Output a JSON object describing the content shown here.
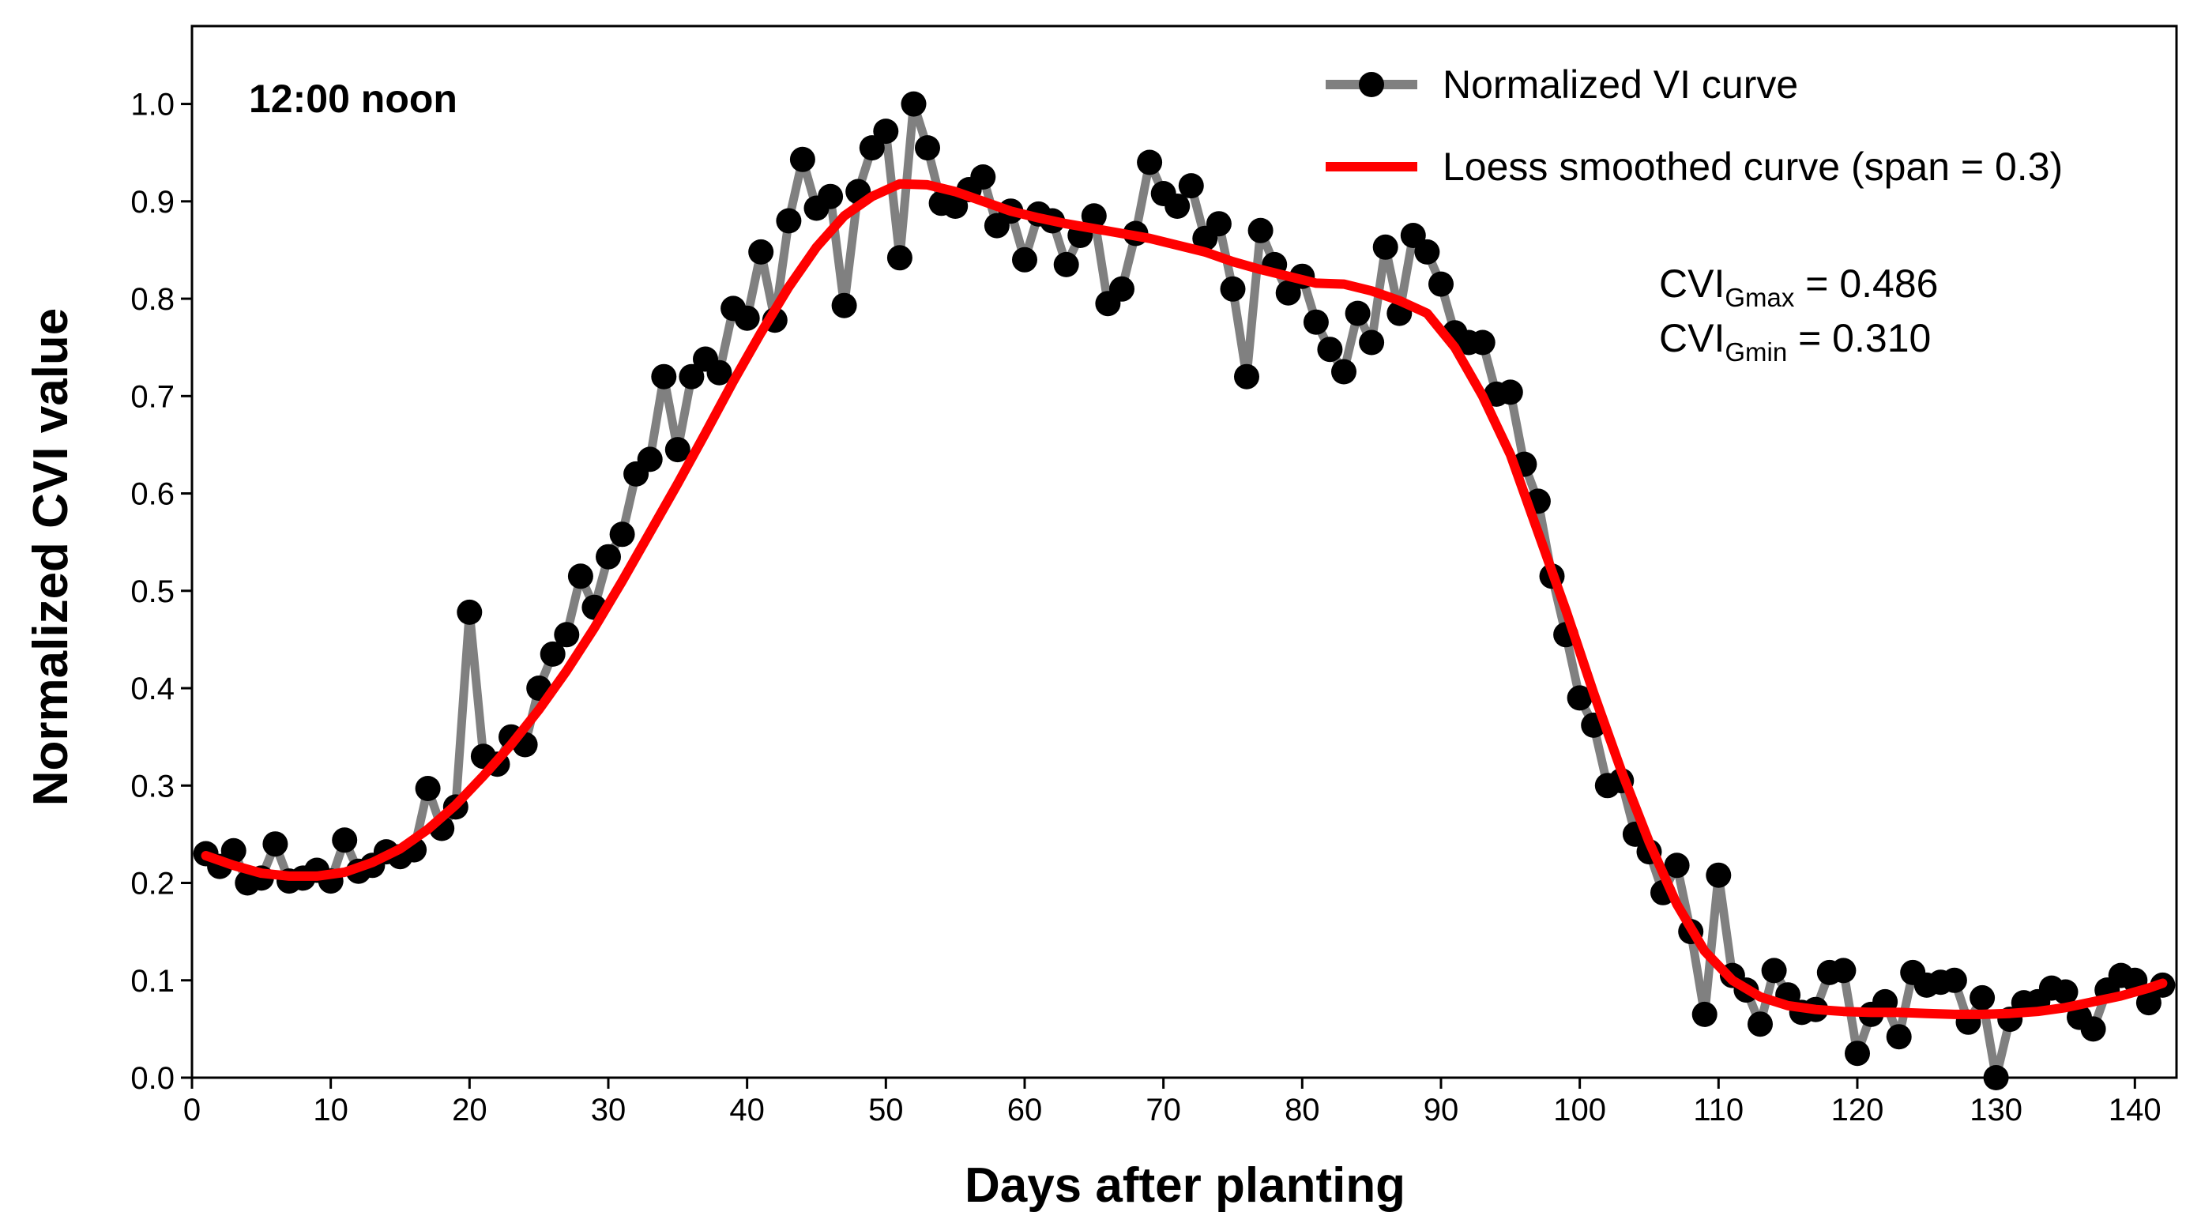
{
  "chart_data": {
    "type": "line",
    "title": "12:00 noon",
    "xlabel": "Days after planting",
    "ylabel": "Normalized CVI value",
    "xlim": [
      0,
      143
    ],
    "ylim": [
      0.0,
      1.08
    ],
    "xticks": [
      0,
      10,
      20,
      30,
      40,
      50,
      60,
      70,
      80,
      90,
      100,
      110,
      120,
      130,
      140
    ],
    "xtick_labels": [
      "0",
      "10",
      "20",
      "30",
      "40",
      "50",
      "60",
      "70",
      "80",
      "90",
      "100",
      "110",
      "120",
      "130",
      "140"
    ],
    "yticks": [
      0.0,
      0.1,
      0.2,
      0.3,
      0.4,
      0.5,
      0.6,
      0.7,
      0.8,
      0.9,
      1.0
    ],
    "ytick_labels": [
      "0.0",
      "0.1",
      "0.2",
      "0.3",
      "0.4",
      "0.5",
      "0.6",
      "0.7",
      "0.8",
      "0.9",
      "1.0"
    ],
    "grid": false,
    "legend_position": "top-right",
    "colors": {
      "vi_line": "#808080",
      "vi_marker": "#000000",
      "loess": "#ff0000"
    },
    "series": [
      {
        "name": "Normalized VI curve",
        "style": "line+markers",
        "x": [
          1,
          2,
          3,
          4,
          5,
          6,
          7,
          8,
          9,
          10,
          11,
          12,
          13,
          14,
          15,
          16,
          17,
          18,
          19,
          20,
          21,
          22,
          23,
          24,
          25,
          26,
          27,
          28,
          29,
          30,
          31,
          32,
          33,
          34,
          35,
          36,
          37,
          38,
          39,
          40,
          41,
          42,
          43,
          44,
          45,
          46,
          47,
          48,
          49,
          50,
          51,
          52,
          53,
          54,
          55,
          56,
          57,
          58,
          59,
          60,
          61,
          62,
          63,
          64,
          65,
          66,
          67,
          68,
          69,
          70,
          71,
          72,
          73,
          74,
          75,
          76,
          77,
          78,
          79,
          80,
          81,
          82,
          83,
          84,
          85,
          86,
          87,
          88,
          89,
          90,
          91,
          92,
          93,
          94,
          95,
          96,
          97,
          98,
          99,
          100,
          101,
          102,
          103,
          104,
          105,
          106,
          107,
          108,
          109,
          110,
          111,
          112,
          113,
          114,
          115,
          116,
          117,
          118,
          119,
          120,
          121,
          122,
          123,
          124,
          125,
          126,
          127,
          128,
          129,
          130,
          131,
          132,
          133,
          134,
          135,
          136,
          137,
          138,
          139,
          140,
          141,
          142
        ],
        "values": [
          0.23,
          0.217,
          0.233,
          0.2,
          0.205,
          0.24,
          0.202,
          0.205,
          0.213,
          0.202,
          0.244,
          0.212,
          0.218,
          0.232,
          0.227,
          0.234,
          0.297,
          0.256,
          0.278,
          0.478,
          0.33,
          0.322,
          0.35,
          0.342,
          0.4,
          0.435,
          0.455,
          0.515,
          0.483,
          0.535,
          0.558,
          0.62,
          0.635,
          0.72,
          0.645,
          0.72,
          0.738,
          0.724,
          0.79,
          0.78,
          0.848,
          0.778,
          0.88,
          0.943,
          0.893,
          0.905,
          0.793,
          0.91,
          0.955,
          0.972,
          0.842,
          1.0,
          0.955,
          0.898,
          0.895,
          0.912,
          0.925,
          0.875,
          0.89,
          0.84,
          0.887,
          0.88,
          0.835,
          0.865,
          0.885,
          0.795,
          0.81,
          0.867,
          0.94,
          0.908,
          0.895,
          0.916,
          0.862,
          0.877,
          0.81,
          0.72,
          0.87,
          0.835,
          0.806,
          0.823,
          0.776,
          0.748,
          0.725,
          0.785,
          0.755,
          0.853,
          0.785,
          0.865,
          0.848,
          0.815,
          0.765,
          0.755,
          0.755,
          0.702,
          0.704,
          0.63,
          0.592,
          0.515,
          0.455,
          0.39,
          0.362,
          0.3,
          0.305,
          0.25,
          0.232,
          0.19,
          0.218,
          0.15,
          0.065,
          0.208,
          0.105,
          0.09,
          0.055,
          0.11,
          0.085,
          0.067,
          0.07,
          0.108,
          0.11,
          0.025,
          0.065,
          0.078,
          0.042,
          0.108,
          0.095,
          0.098,
          0.1,
          0.057,
          0.082,
          0.0,
          0.06,
          0.077,
          0.078,
          0.092,
          0.088,
          0.062,
          0.05,
          0.09,
          0.105,
          0.1,
          0.077,
          0.095
        ]
      },
      {
        "name": "Loess smoothed curve (span = 0.3)",
        "style": "line",
        "x": [
          1,
          3,
          5,
          7,
          9,
          11,
          13,
          15,
          17,
          19,
          21,
          23,
          25,
          27,
          29,
          31,
          33,
          35,
          37,
          39,
          41,
          43,
          45,
          47,
          49,
          51,
          53,
          55,
          57,
          59,
          61,
          63,
          65,
          67,
          69,
          71,
          73,
          75,
          77,
          79,
          81,
          83,
          85,
          87,
          89,
          91,
          93,
          95,
          97,
          99,
          101,
          103,
          105,
          107,
          109,
          111,
          113,
          115,
          117,
          119,
          121,
          123,
          125,
          127,
          129,
          131,
          133,
          135,
          137,
          139,
          141,
          142
        ],
        "values": [
          0.228,
          0.218,
          0.21,
          0.207,
          0.207,
          0.211,
          0.221,
          0.235,
          0.255,
          0.28,
          0.31,
          0.342,
          0.378,
          0.418,
          0.462,
          0.51,
          0.56,
          0.61,
          0.662,
          0.715,
          0.765,
          0.812,
          0.853,
          0.885,
          0.905,
          0.918,
          0.917,
          0.91,
          0.9,
          0.89,
          0.883,
          0.877,
          0.872,
          0.867,
          0.862,
          0.855,
          0.848,
          0.838,
          0.83,
          0.823,
          0.816,
          0.815,
          0.808,
          0.798,
          0.785,
          0.75,
          0.7,
          0.64,
          0.56,
          0.48,
          0.395,
          0.315,
          0.242,
          0.178,
          0.13,
          0.1,
          0.083,
          0.074,
          0.07,
          0.068,
          0.067,
          0.067,
          0.066,
          0.065,
          0.065,
          0.066,
          0.068,
          0.072,
          0.078,
          0.084,
          0.092,
          0.097
        ]
      }
    ],
    "annotations": [
      {
        "base": "CVI",
        "sub": "Gmax",
        "text": " = 0.486"
      },
      {
        "base": "CVI",
        "sub": "Gmin",
        "text": " = 0.310"
      }
    ]
  }
}
